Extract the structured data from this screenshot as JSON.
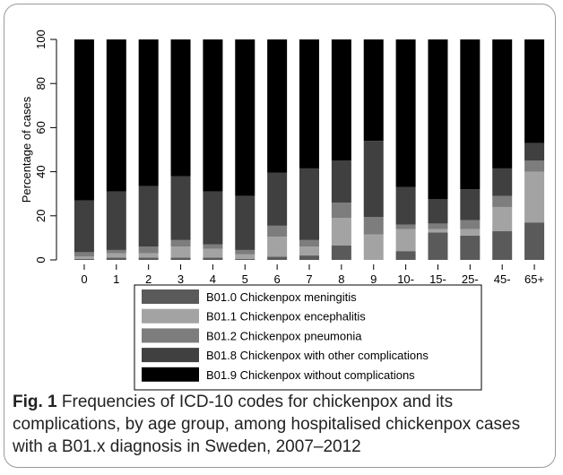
{
  "colors": {
    "meningitis": "#5a5a5a",
    "encephalitis": "#a3a3a3",
    "pneumonia": "#7d7d7d",
    "other_complications": "#404040",
    "without_complications": "#000000"
  },
  "caption": {
    "label": "Fig. 1",
    "text": " Frequencies of ICD-10 codes for chickenpox and its complications, by age group, among hospitalised chickenpox cases with a B01.x diagnosis in Sweden, 2007–2012"
  },
  "chart_data": {
    "type": "bar",
    "stacked": true,
    "ylabel": "Percentage of cases",
    "xlabel": "",
    "ylim": [
      0,
      100
    ],
    "yticks": [
      0,
      20,
      40,
      60,
      80,
      100
    ],
    "grid": false,
    "legend_position": "bottom",
    "categories": [
      "0",
      "1",
      "2",
      "3",
      "4",
      "5",
      "6",
      "7",
      "8",
      "9",
      "10-",
      "15-",
      "25-",
      "45-",
      "65+"
    ],
    "series": [
      {
        "name": "B01.0 Chickenpox meningitis",
        "color_key": "meningitis",
        "values": [
          0.5,
          1,
          1,
          1,
          1,
          0.5,
          1.5,
          2,
          6.5,
          0,
          4,
          12.5,
          11,
          13,
          17
        ]
      },
      {
        "name": "B01.1 Chickenpox encephalitis",
        "color_key": "encephalitis",
        "values": [
          1,
          2,
          2,
          5,
          4,
          2,
          9,
          4,
          12.5,
          11.5,
          10,
          1.5,
          3,
          11,
          23
        ]
      },
      {
        "name": "B01.2 Chickenpox pneumonia",
        "color_key": "pneumonia",
        "values": [
          2,
          1.5,
          3,
          3,
          2,
          2,
          5,
          3,
          7,
          8,
          2,
          2.5,
          4,
          5,
          5
        ]
      },
      {
        "name": "B01.8 Chickenpox with other complications",
        "color_key": "other_complications",
        "values": [
          23.5,
          26.5,
          27.5,
          29,
          24,
          24.5,
          24,
          32.5,
          19,
          34.5,
          17,
          11,
          14,
          12.5,
          8
        ]
      },
      {
        "name": "B01.9 Chickenpox without complications",
        "color_key": "without_complications",
        "values": [
          73,
          69,
          66.5,
          62,
          69,
          71,
          60.5,
          58.5,
          55,
          46,
          67,
          72.5,
          68,
          58.5,
          47
        ]
      }
    ]
  }
}
